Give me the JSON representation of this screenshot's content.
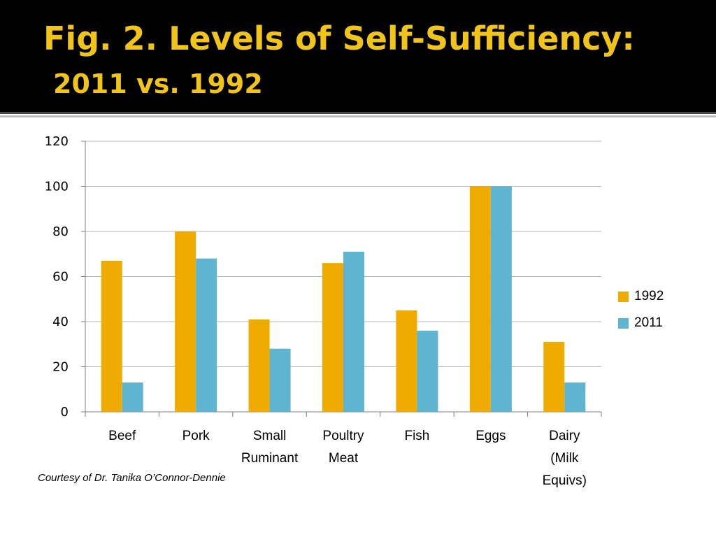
{
  "slide": {
    "title_line_1": "Fig. 2.   Levels of Self-Sufficiency:",
    "title_line_2": "2011 vs. 1992",
    "credit": "Courtesy of Dr. Tanika O’Connor-Dennie"
  },
  "colors": {
    "title": "#f0c419",
    "series_1992": "#f0ab00",
    "series_2011": "#5fb5d0",
    "grid": "#b7b7b7"
  },
  "chart_data": {
    "type": "bar",
    "title": "",
    "xlabel": "",
    "ylabel": "",
    "ylim": [
      0,
      120
    ],
    "yticks": [
      "0",
      "20",
      "40",
      "60",
      "80",
      "100",
      "120"
    ],
    "grid": true,
    "legend_position": "right",
    "categories": [
      [
        "Beef"
      ],
      [
        "Pork"
      ],
      [
        "Small",
        "Ruminant"
      ],
      [
        "Poultry",
        "Meat"
      ],
      [
        "Fish"
      ],
      [
        "Eggs"
      ],
      [
        "Dairy",
        "(Milk",
        "Equivs)"
      ]
    ],
    "series": [
      {
        "name": "1992",
        "values": [
          67,
          80,
          41,
          66,
          45,
          100,
          31
        ]
      },
      {
        "name": "2011",
        "values": [
          13,
          68,
          28,
          71,
          36,
          100,
          13
        ]
      }
    ]
  }
}
